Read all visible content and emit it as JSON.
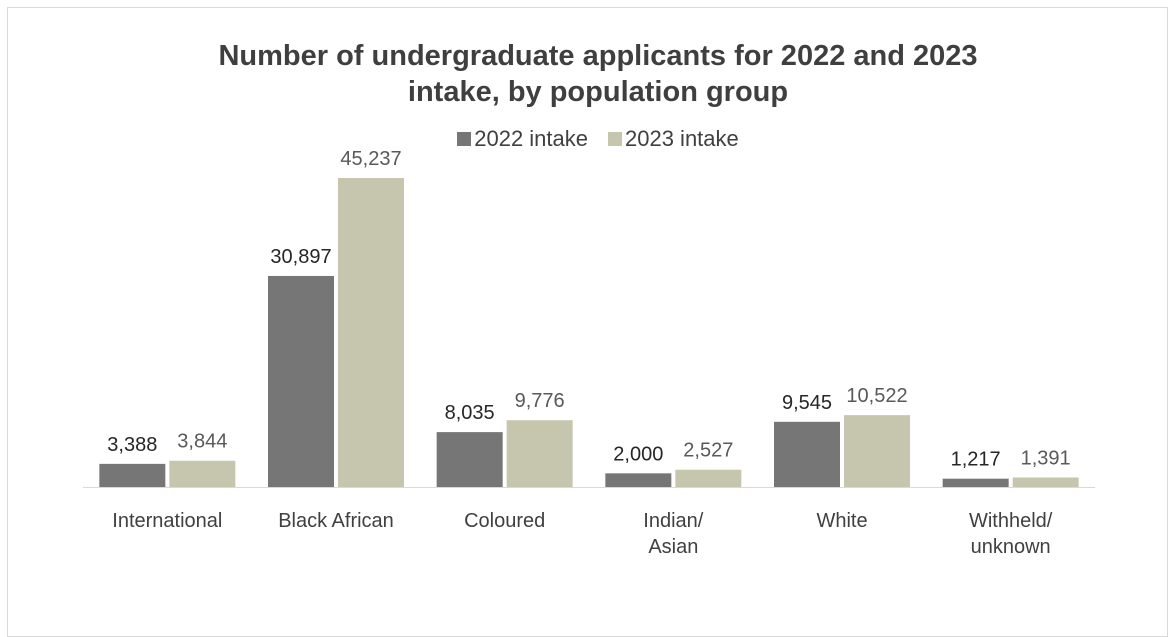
{
  "colors": {
    "series_2022": "#767676",
    "series_2023": "#c6c6ae",
    "axis": "#d9d9d9"
  },
  "chart_data": {
    "type": "bar",
    "title": "Number of undergraduate applicants for 2022 and 2023 intake, by population group",
    "title_lines": [
      "Number of undergraduate applicants for 2022 and 2023",
      "intake, by population group"
    ],
    "categories": [
      "International",
      "Black African",
      "Coloured",
      "Indian/ Asian",
      "White",
      "Withheld/ unknown"
    ],
    "category_lines": [
      [
        "International"
      ],
      [
        "Black African"
      ],
      [
        "Coloured"
      ],
      [
        "Indian/",
        "Asian"
      ],
      [
        "White"
      ],
      [
        "Withheld/",
        "unknown"
      ]
    ],
    "series": [
      {
        "name": "2022 intake",
        "values": [
          3388,
          30897,
          8035,
          2000,
          9545,
          1217
        ],
        "labels": [
          "3,388",
          "30,897",
          "8,035",
          "2,000",
          "9,545",
          "1,217"
        ]
      },
      {
        "name": "2023 intake",
        "values": [
          3844,
          45237,
          9776,
          2527,
          10522,
          1391
        ],
        "labels": [
          "3,844",
          "45,237",
          "9,776",
          "2,527",
          "10,522",
          "1,391"
        ]
      }
    ],
    "ylim": [
      0,
      45237
    ],
    "grid": false,
    "legend_position": "top-center",
    "xlabel": "",
    "ylabel": ""
  }
}
